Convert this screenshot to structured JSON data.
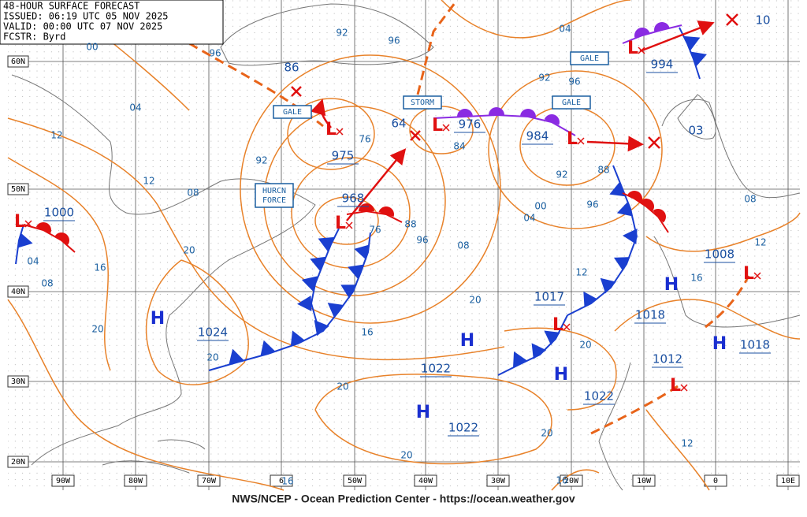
{
  "header": {
    "title": "48-HOUR SURFACE FORECAST",
    "issued": "ISSUED: 06:19 UTC 05 NOV 2025",
    "valid": "VALID:  00:00 UTC 07 NOV 2025",
    "forecaster": "FCSTR:  Byrd"
  },
  "footer": "NWS/NCEP - Ocean Prediction Center - https://ocean.weather.gov",
  "lat_labels": [
    "60N",
    "50N",
    "40N",
    "30N",
    "20N"
  ],
  "lon_labels": [
    "90W",
    "80W",
    "70W",
    "6",
    "50W",
    "40W",
    "30W",
    "20W",
    "10W",
    "0",
    "10E"
  ],
  "warnings": [
    "GALE",
    "GALE",
    "GALE",
    "STORM",
    "HURCN FORCE"
  ],
  "pressure_systems": [
    {
      "symbol": "L",
      "value": 1000
    },
    {
      "symbol": "L",
      "value": 975
    },
    {
      "symbol": "L",
      "value": 968
    },
    {
      "symbol": "L",
      "value": 976
    },
    {
      "symbol": "L",
      "value": 984
    },
    {
      "symbol": "L",
      "value": 994
    },
    {
      "symbol": "L",
      "value": 1017
    },
    {
      "symbol": "L",
      "value": 1008
    },
    {
      "symbol": "L",
      "value": 1012
    },
    {
      "symbol": "H",
      "value": 1024
    },
    {
      "symbol": "H",
      "value": 1022
    },
    {
      "symbol": "H",
      "value": 1022
    },
    {
      "symbol": "H",
      "value": 1022
    },
    {
      "symbol": "H",
      "value": 1018
    },
    {
      "symbol": "H",
      "value": 1018
    }
  ],
  "center_values": [
    "86",
    "64",
    "03",
    "10"
  ],
  "isobar_labels": [
    "92",
    "96",
    "04",
    "96",
    "00",
    "04",
    "12",
    "12",
    "08",
    "92",
    "76",
    "84",
    "92",
    "96",
    "88",
    "92",
    "96",
    "00",
    "04",
    "08",
    "88",
    "96",
    "76",
    "20",
    "16",
    "04",
    "08",
    "20",
    "16",
    "20",
    "12",
    "16",
    "12",
    "08",
    "20",
    "20",
    "20",
    "20",
    "20",
    "16",
    "16",
    "12"
  ]
}
